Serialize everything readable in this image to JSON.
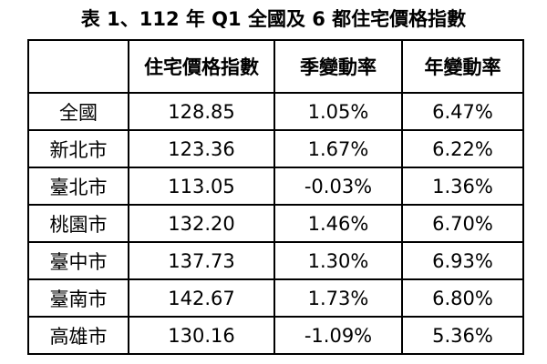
{
  "title": "表 1、112 年 Q1 全國及 6 都住宅價格指數",
  "table": {
    "columns": [
      "住宅價格指數",
      "季變動率",
      "年變動率"
    ],
    "rows": [
      {
        "label": "全國",
        "cells": [
          "128.85",
          "1.05%",
          "6.47%"
        ]
      },
      {
        "label": "新北市",
        "cells": [
          "123.36",
          "1.67%",
          "6.22%"
        ]
      },
      {
        "label": "臺北市",
        "cells": [
          "113.05",
          "-0.03%",
          "1.36%"
        ]
      },
      {
        "label": "桃園市",
        "cells": [
          "132.20",
          "1.46%",
          "6.70%"
        ]
      },
      {
        "label": "臺中市",
        "cells": [
          "137.73",
          "1.30%",
          "6.93%"
        ]
      },
      {
        "label": "臺南市",
        "cells": [
          "142.67",
          "1.73%",
          "6.80%"
        ]
      },
      {
        "label": "高雄市",
        "cells": [
          "130.16",
          "-1.09%",
          "5.36%"
        ]
      }
    ]
  }
}
